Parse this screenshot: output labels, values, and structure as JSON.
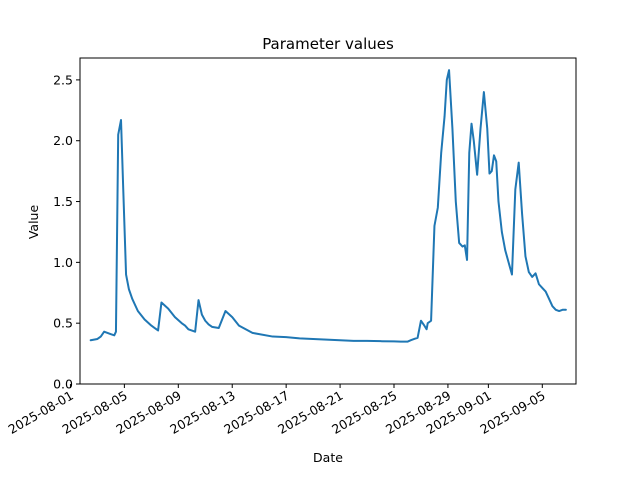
{
  "chart_data": {
    "type": "line",
    "title": "Parameter values",
    "xlabel": "Date",
    "ylabel": "Value",
    "x_ticks": [
      "2025-08-01",
      "2025-08-05",
      "2025-08-09",
      "2025-08-13",
      "2025-08-17",
      "2025-08-21",
      "2025-08-25",
      "2025-08-29",
      "2025-09-01",
      "2025-09-05"
    ],
    "y_ticks": [
      "0.0",
      "0.5",
      "1.0",
      "1.5",
      "2.0",
      "2.5"
    ],
    "xlim": [
      "2025-08-01T17:00",
      "2025-09-07T12:00"
    ],
    "ylim": [
      0,
      2.68
    ],
    "grid": false,
    "color": "#1f77b4",
    "series": [
      {
        "x": [
          "2025-08-02T12:00",
          "2025-08-03T00:00",
          "2025-08-03T06:00",
          "2025-08-03T12:00",
          "2025-08-03T18:00",
          "2025-08-04T00:00",
          "2025-08-04T06:00",
          "2025-08-04T09:00",
          "2025-08-04T13:00",
          "2025-08-04T18:00",
          "2025-08-04T22:00",
          "2025-08-05T03:00",
          "2025-08-05T08:00",
          "2025-08-05T14:00",
          "2025-08-06T00:00",
          "2025-08-06T12:00",
          "2025-08-07T00:00",
          "2025-08-07T06:00",
          "2025-08-07T12:00",
          "2025-08-07T18:00",
          "2025-08-08T06:00",
          "2025-08-08T18:00",
          "2025-08-09T06:00",
          "2025-08-09T12:00",
          "2025-08-09T18:00",
          "2025-08-10T06:00",
          "2025-08-10T12:00",
          "2025-08-10T18:00",
          "2025-08-11T00:00",
          "2025-08-11T06:00",
          "2025-08-11T12:00",
          "2025-08-12T00:00",
          "2025-08-12T12:00",
          "2025-08-13T00:00",
          "2025-08-13T12:00",
          "2025-08-14T00:00",
          "2025-08-14T12:00",
          "2025-08-15T00:00",
          "2025-08-16T00:00",
          "2025-08-17T00:00",
          "2025-08-18T00:00",
          "2025-08-19T00:00",
          "2025-08-20T00:00",
          "2025-08-21T00:00",
          "2025-08-22T00:00",
          "2025-08-23T00:00",
          "2025-08-24T00:00",
          "2025-08-25T00:00",
          "2025-08-25T12:00",
          "2025-08-26T00:00",
          "2025-08-26T06:00",
          "2025-08-26T12:00",
          "2025-08-26T18:00",
          "2025-08-27T00:00",
          "2025-08-27T06:00",
          "2025-08-27T10:00",
          "2025-08-27T12:00",
          "2025-08-27T18:00",
          "2025-08-28T00:00",
          "2025-08-28T06:00",
          "2025-08-28T12:00",
          "2025-08-28T18:00",
          "2025-08-28T22:00",
          "2025-08-29T02:00",
          "2025-08-29T08:00",
          "2025-08-29T14:00",
          "2025-08-29T20:00",
          "2025-08-30T02:00",
          "2025-08-30T06:00",
          "2025-08-30T10:00",
          "2025-08-30T14:00",
          "2025-08-30T18:00",
          "2025-08-30T22:00",
          "2025-08-31T04:00",
          "2025-08-31T10:00",
          "2025-08-31T16:00",
          "2025-08-31T22:00",
          "2025-09-01T02:00",
          "2025-09-01T06:00",
          "2025-09-01T10:00",
          "2025-09-01T14:00",
          "2025-09-01T18:00",
          "2025-09-02T00:00",
          "2025-09-02T06:00",
          "2025-09-02T12:00",
          "2025-09-02T18:00",
          "2025-09-03T00:00",
          "2025-09-03T06:00",
          "2025-09-03T12:00",
          "2025-09-03T18:00",
          "2025-09-04T00:00",
          "2025-09-04T06:00",
          "2025-09-04T12:00",
          "2025-09-04T18:00",
          "2025-09-05T00:00",
          "2025-09-05T06:00",
          "2025-09-05T12:00",
          "2025-09-05T18:00",
          "2025-09-06T00:00",
          "2025-09-06T06:00",
          "2025-09-06T12:00",
          "2025-09-06T18:00"
        ],
        "y": [
          0.36,
          0.37,
          0.39,
          0.43,
          0.42,
          0.41,
          0.4,
          0.43,
          2.05,
          2.17,
          1.6,
          0.9,
          0.78,
          0.7,
          0.6,
          0.53,
          0.48,
          0.46,
          0.44,
          0.67,
          0.62,
          0.55,
          0.5,
          0.48,
          0.45,
          0.43,
          0.69,
          0.57,
          0.52,
          0.49,
          0.47,
          0.46,
          0.6,
          0.55,
          0.48,
          0.45,
          0.42,
          0.41,
          0.39,
          0.385,
          0.375,
          0.37,
          0.365,
          0.36,
          0.355,
          0.355,
          0.352,
          0.35,
          0.348,
          0.348,
          0.36,
          0.37,
          0.38,
          0.52,
          0.48,
          0.45,
          0.5,
          0.52,
          1.3,
          1.45,
          1.9,
          2.2,
          2.5,
          2.58,
          2.1,
          1.5,
          1.16,
          1.13,
          1.14,
          1.02,
          1.9,
          2.14,
          2.0,
          1.72,
          2.1,
          2.4,
          2.1,
          1.73,
          1.75,
          1.88,
          1.83,
          1.5,
          1.25,
          1.1,
          1.0,
          0.9,
          1.6,
          1.82,
          1.4,
          1.05,
          0.92,
          0.88,
          0.91,
          0.82,
          0.79,
          0.76,
          0.7,
          0.64,
          0.61,
          0.6,
          0.61,
          0.61
        ]
      }
    ]
  }
}
